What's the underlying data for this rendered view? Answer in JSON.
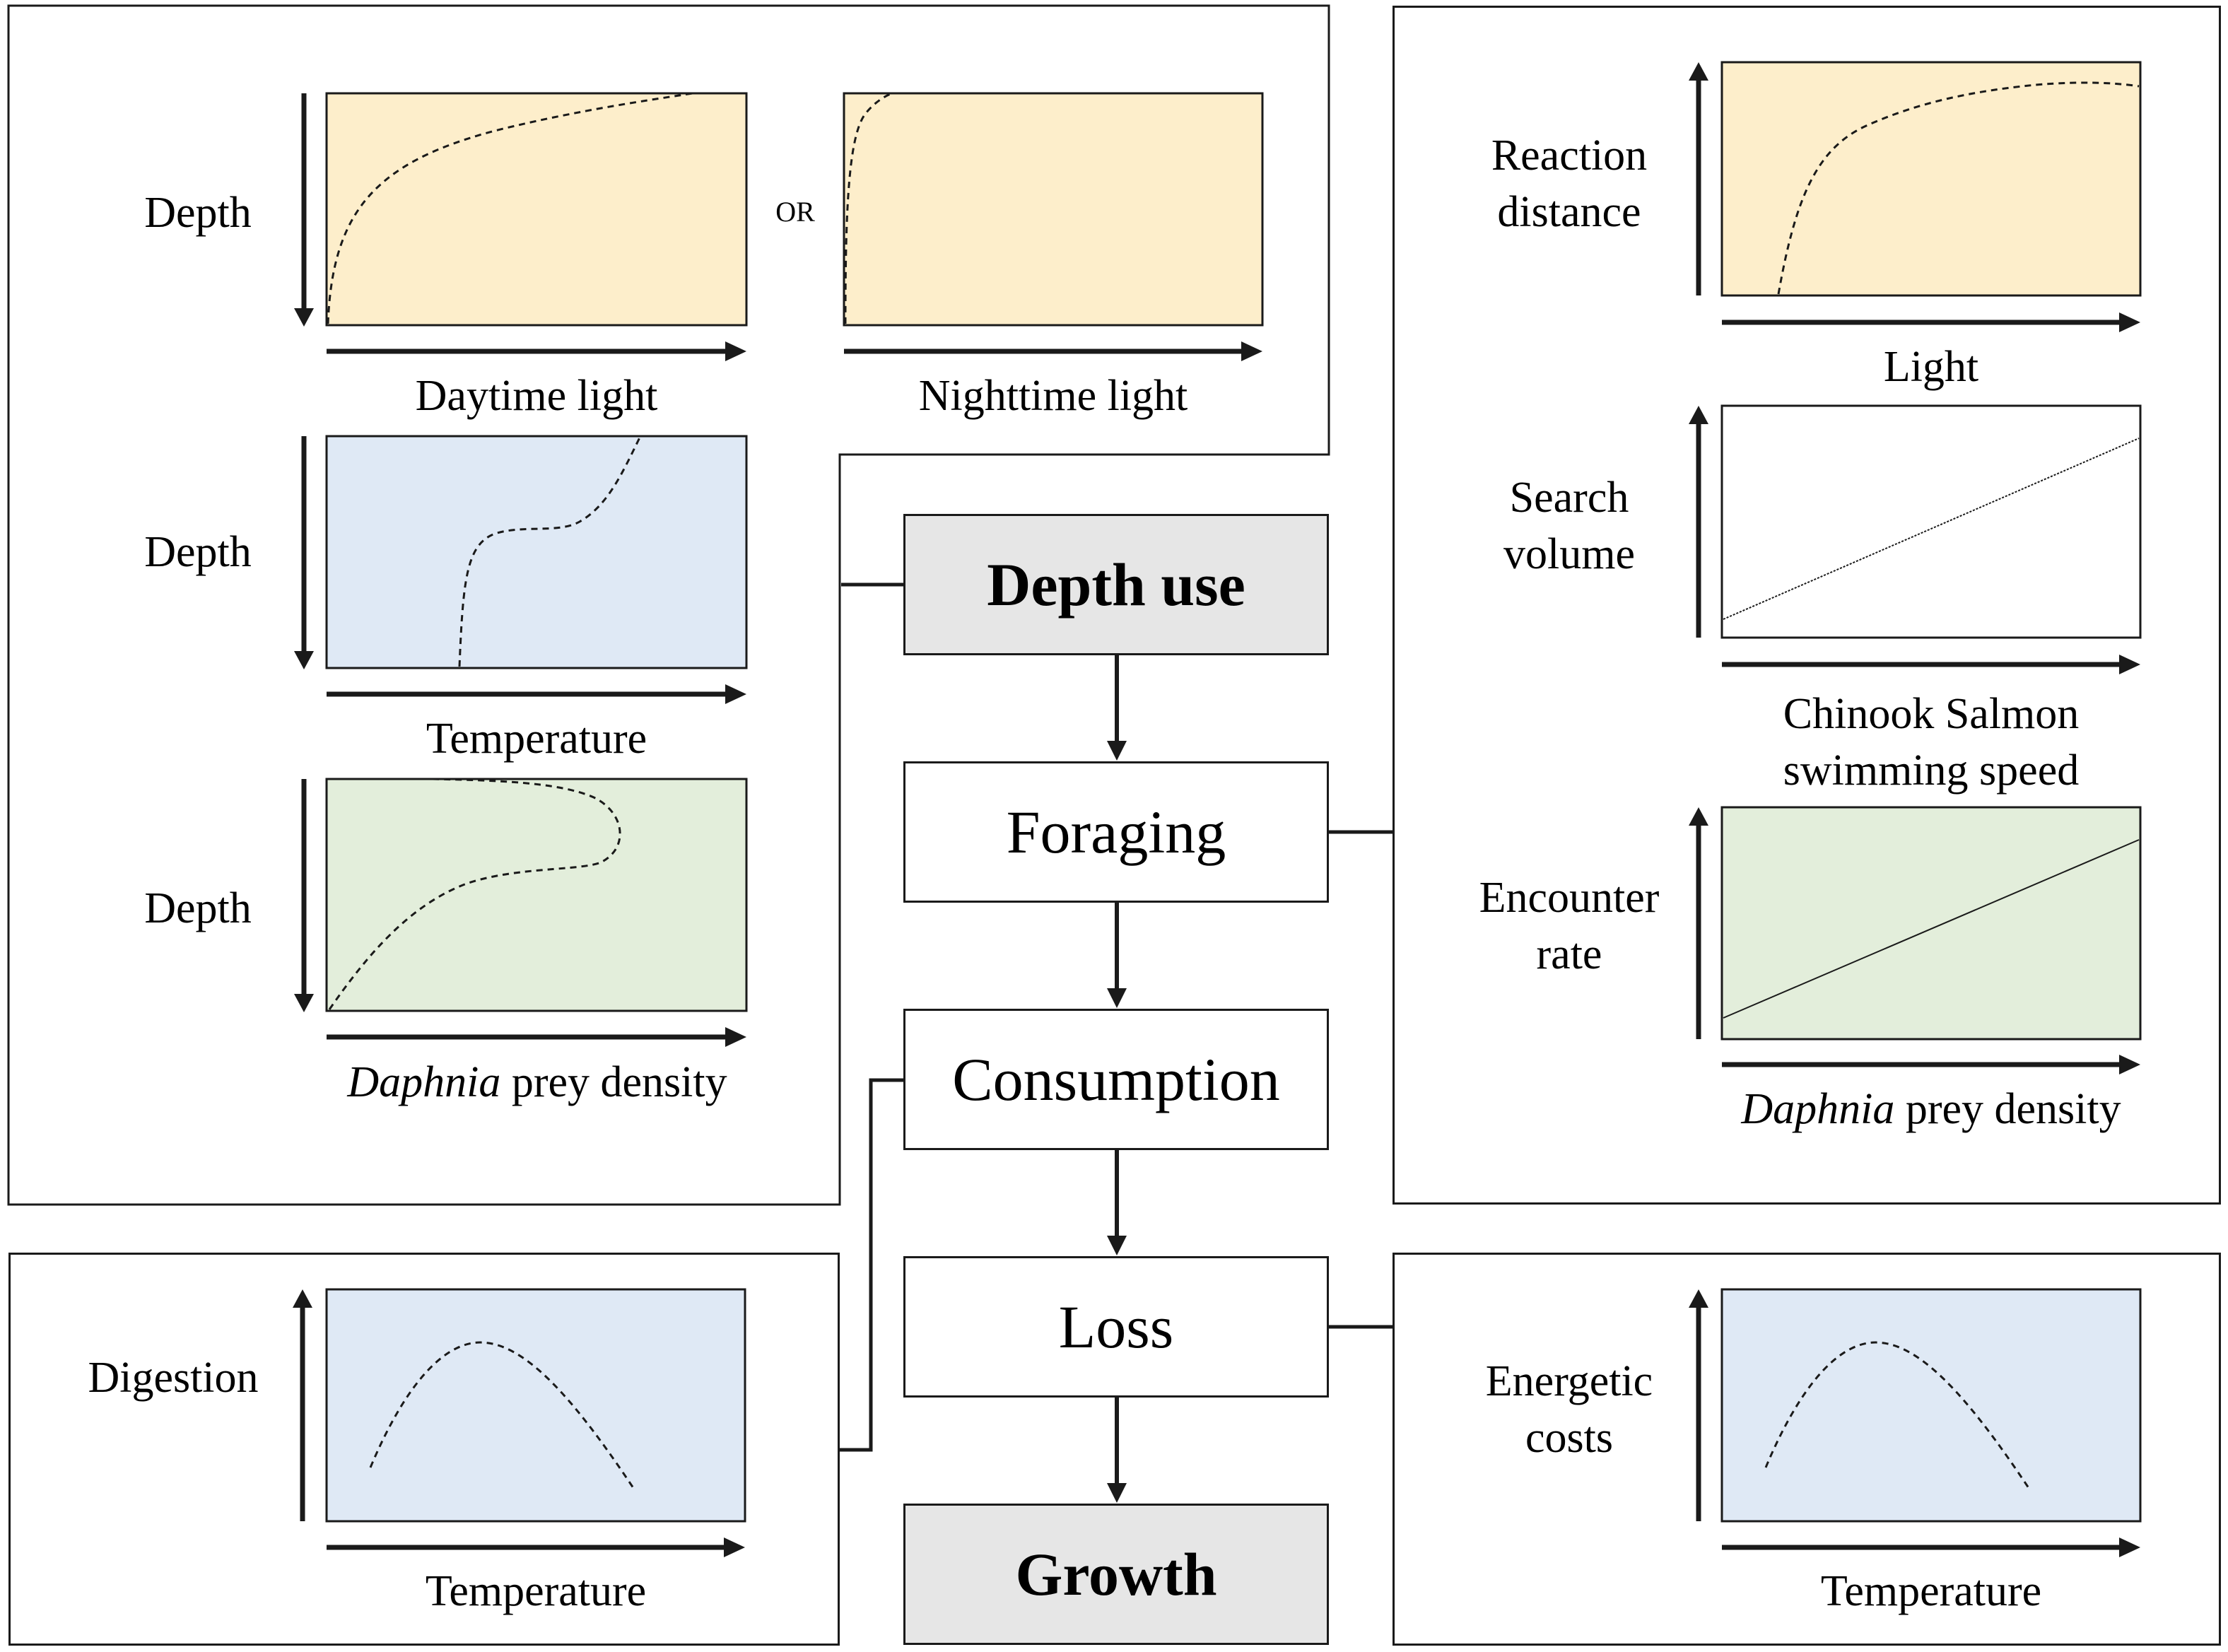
{
  "colors": {
    "light_panel": "#fdeecb",
    "temperature_panel": "#dfe9f5",
    "prey_panel": "#e3eedb",
    "step_highlight": "#e6e6e6",
    "line": "#1a1a1a"
  },
  "steps": {
    "depth_use": "Depth use",
    "foraging": "Foraging",
    "consumption": "Consumption",
    "loss": "Loss",
    "growth": "Growth"
  },
  "depth_panel": {
    "day_light": {
      "y_label": "Depth",
      "x_label": "Daytime light"
    },
    "or_text": "OR",
    "night_light": {
      "x_label": "Nighttime light"
    },
    "temperature": {
      "y_label": "Depth",
      "x_label": "Temperature"
    },
    "prey": {
      "y_label": "Depth",
      "x_label_italic": "Daphnia",
      "x_label_rest": " prey density"
    }
  },
  "foraging_panel": {
    "reaction": {
      "y_label_1": "Reaction",
      "y_label_2": "distance",
      "x_label": "Light"
    },
    "search": {
      "y_label_1": "Search",
      "y_label_2": "volume",
      "x_label_1": "Chinook Salmon",
      "x_label_2": "swimming speed"
    },
    "encounter": {
      "y_label_1": "Encounter",
      "y_label_2": "rate",
      "x_label_italic": "Daphnia",
      "x_label_rest": " prey density"
    }
  },
  "consumption_panel": {
    "y_label": "Digestion",
    "x_label": "Temperature"
  },
  "loss_panel": {
    "y_label_1": "Energetic",
    "y_label_2": "costs",
    "x_label": "Temperature"
  }
}
